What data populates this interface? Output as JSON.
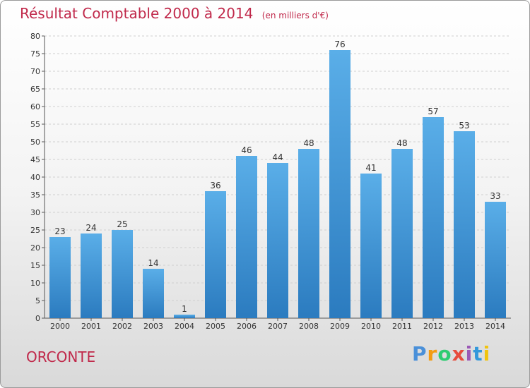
{
  "header": {
    "title": "Résultat Comptable 2000 à 2014",
    "unit_note": "(en milliers d'€)"
  },
  "footer": {
    "commune": "ORCONTE",
    "logo_text": "Proxiti"
  },
  "colors": {
    "title": "#c0284a",
    "bar_top": "#5aaee8",
    "bar_bottom": "#2b7bbf"
  },
  "chart_data": {
    "type": "bar",
    "categories": [
      "2000",
      "2001",
      "2002",
      "2003",
      "2004",
      "2005",
      "2006",
      "2007",
      "2008",
      "2009",
      "2010",
      "2011",
      "2012",
      "2013",
      "2014"
    ],
    "values": [
      23,
      24,
      25,
      14,
      1,
      36,
      46,
      44,
      48,
      76,
      41,
      48,
      57,
      53,
      33
    ],
    "title": "Résultat Comptable 2000 à 2014",
    "ylim": [
      0,
      80
    ],
    "yticks": [
      0,
      5,
      10,
      15,
      20,
      25,
      30,
      35,
      40,
      45,
      50,
      55,
      60,
      65,
      70,
      75,
      80
    ],
    "grid": "horizontal dashed",
    "legend": "none"
  }
}
